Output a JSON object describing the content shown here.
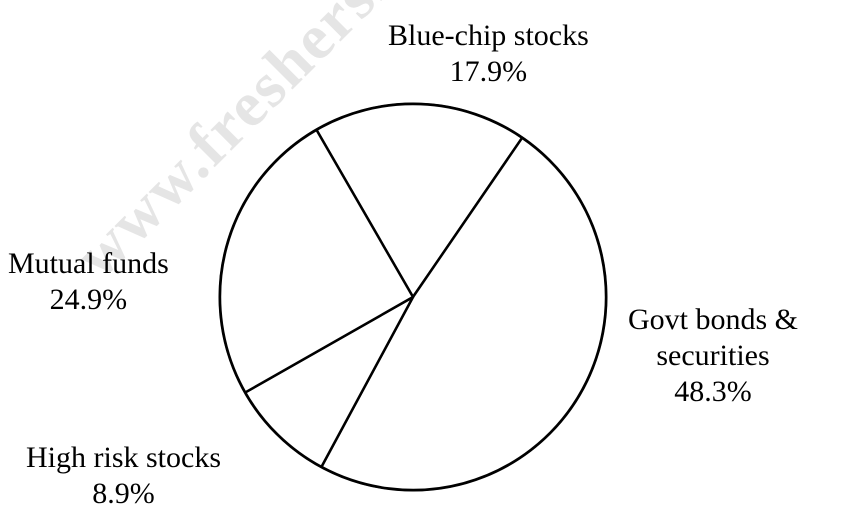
{
  "chart_data": {
    "type": "pie",
    "title": "",
    "slices": [
      {
        "label": "Blue-chip stocks",
        "label_lines": [
          "Blue-chip stocks"
        ],
        "value_text": "17.9%",
        "value": 17.9
      },
      {
        "label": "Govt bonds & securities",
        "label_lines": [
          "Govt bonds &",
          "securities"
        ],
        "value_text": "48.3%",
        "value": 48.3
      },
      {
        "label": "High risk stocks",
        "label_lines": [
          "High risk stocks"
        ],
        "value_text": "8.9%",
        "value": 8.9
      },
      {
        "label": "Mutual funds",
        "label_lines": [
          "Mutual funds"
        ],
        "value_text": "24.9%",
        "value": 24.9
      }
    ],
    "fill_color": "#ffffff",
    "stroke_color": "#000000"
  },
  "watermark": {
    "text": "www.freshersnow.com"
  }
}
